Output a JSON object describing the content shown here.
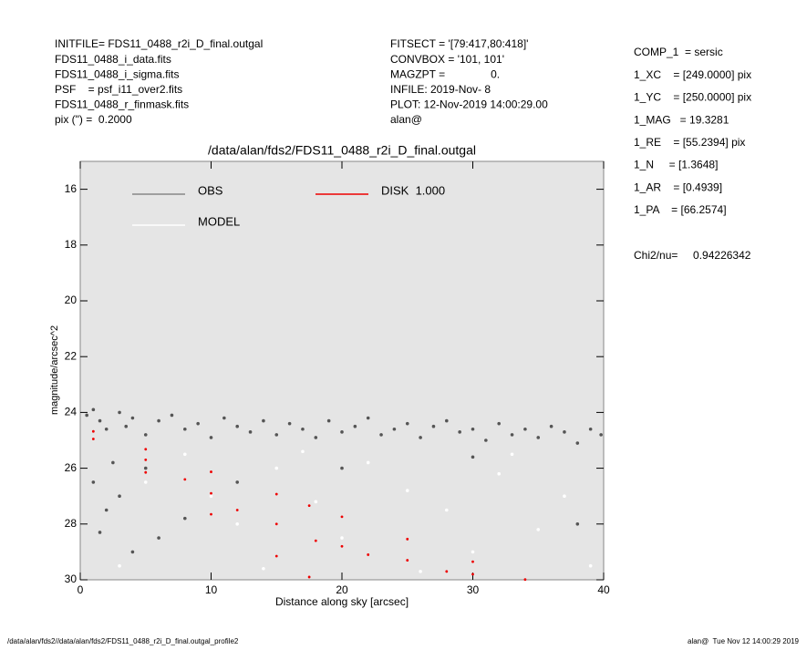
{
  "header_left": [
    "INITFILE= FDS11_0488_r2i_D_final.outgal",
    "FDS11_0488_i_data.fits",
    "FDS11_0488_i_sigma.fits",
    "PSF    = psf_i11_over2.fits",
    "FDS11_0488_r_finmask.fits",
    "pix (\") =  0.2000"
  ],
  "header_middle": [
    "FITSECT = '[79:417,80:418]'",
    "CONVBOX = '101, 101'",
    "MAGZPT =               0.",
    "INFILE: 2019-Nov- 8",
    "PLOT: 12-Nov-2019 14:00:29.00",
    "alan@"
  ],
  "parameters": [
    "COMP_1  = sersic",
    "1_XC    = [249.0000] pix",
    "1_YC    = [250.0000] pix",
    "1_MAG   = 19.3281",
    "1_RE    = [55.2394] pix",
    "1_N     = [1.3648]",
    "1_AR    = [0.4939]",
    "1_PA    = [66.2574]"
  ],
  "chi2": "Chi2/nu=     0.94226342",
  "footer_left": "/data/alan/fds2//data/alan/fds2/FDS11_0488_r2i_D_final.outgal_profile2",
  "footer_right": "alan@  Tue Nov 12 14:00:29 2019",
  "chart_data": {
    "type": "scatter",
    "title": "/data/alan/fds2/FDS11_0488_r2i_D_final.outgal",
    "x_label": "Distance along sky [arcsec]",
    "y_label": "magnitude/arcsec^2",
    "xlim": [
      0,
      40
    ],
    "xticks": [
      0,
      10,
      20,
      30,
      40
    ],
    "ylim": [
      30,
      15
    ],
    "yticks": [
      16,
      18,
      20,
      22,
      24,
      26,
      28,
      30
    ],
    "background": "#e5e5e5",
    "series": [
      {
        "name": "OBS",
        "color": "#555555",
        "x": [
          0.5,
          1,
          1.5,
          2,
          3,
          3.5,
          4,
          5,
          6,
          7,
          8,
          9,
          10,
          11,
          12,
          13,
          14,
          15,
          16,
          17,
          18,
          19,
          20,
          21,
          22,
          23,
          24,
          25,
          26,
          27,
          28,
          29,
          30,
          31,
          32,
          33,
          34,
          35,
          36,
          37,
          38,
          39,
          39.8,
          1,
          2,
          1.5,
          3,
          4,
          5,
          6,
          8,
          2.5,
          12,
          20,
          30,
          38
        ],
        "values": [
          24.1,
          23.9,
          24.3,
          24.6,
          24.0,
          24.5,
          24.2,
          24.8,
          24.3,
          24.1,
          24.6,
          24.4,
          24.9,
          24.2,
          24.5,
          24.7,
          24.3,
          24.8,
          24.4,
          24.6,
          24.9,
          24.3,
          24.7,
          24.5,
          24.2,
          24.8,
          24.6,
          24.4,
          24.9,
          24.5,
          24.3,
          24.7,
          24.6,
          25.0,
          24.4,
          24.8,
          24.6,
          24.9,
          24.5,
          24.7,
          25.1,
          24.6,
          24.8,
          26.5,
          27.5,
          28.3,
          27,
          29,
          26,
          28.5,
          27.8,
          25.8,
          26.5,
          26,
          25.6,
          28
        ]
      },
      {
        "name": "MODEL",
        "color": "#ffffff",
        "x": [
          5,
          8,
          10,
          12,
          15,
          18,
          20,
          22,
          25,
          28,
          30,
          32,
          35,
          37,
          39,
          3,
          14,
          26,
          33,
          17
        ],
        "values": [
          26.5,
          25.5,
          27,
          28,
          26,
          27.2,
          28.5,
          25.8,
          26.8,
          27.5,
          29,
          26.2,
          28.2,
          27,
          29.5,
          29.5,
          29.6,
          29.7,
          25.5,
          25.4
        ]
      },
      {
        "name": "DISK  1.000",
        "color": "#ee0000",
        "x": [
          1,
          1,
          5,
          5,
          10,
          10,
          15,
          15,
          17.5,
          17.5,
          20,
          25,
          30,
          34,
          5,
          10,
          15,
          20,
          25,
          8,
          12,
          18,
          22,
          28,
          30
        ],
        "values": [
          24.68,
          24.95,
          25.32,
          26.15,
          26.13,
          27.65,
          26.93,
          29.15,
          27.34,
          29.9,
          27.74,
          28.54,
          29.35,
          29.99,
          25.7,
          26.9,
          28,
          28.8,
          29.3,
          26.4,
          27.5,
          28.6,
          29.1,
          29.7,
          29.8
        ]
      }
    ]
  }
}
